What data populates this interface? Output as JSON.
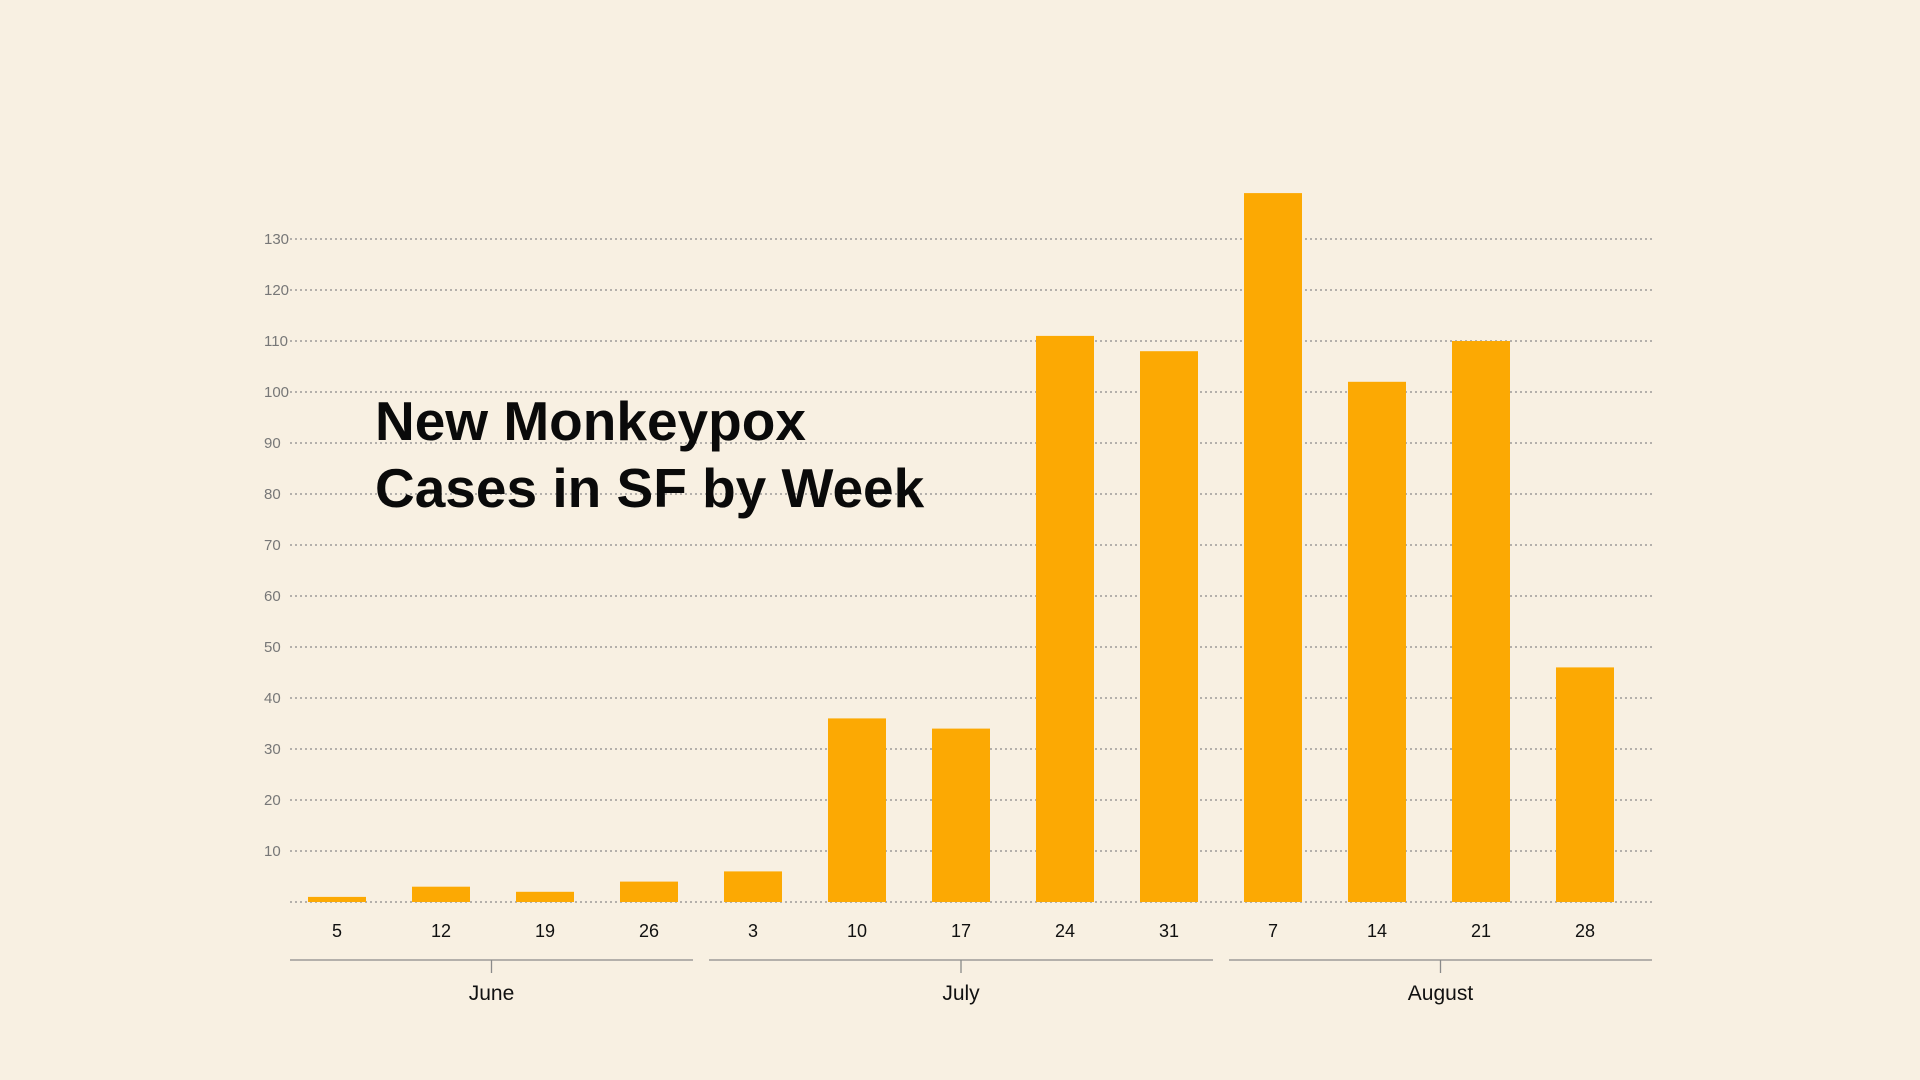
{
  "chart_data": {
    "type": "bar",
    "title_lines": [
      "New Monkeypox",
      "Cases in SF by Week"
    ],
    "categories": [
      "5",
      "12",
      "19",
      "26",
      "3",
      "10",
      "17",
      "24",
      "31",
      "7",
      "14",
      "21",
      "28"
    ],
    "values": [
      1,
      3,
      2,
      4,
      6,
      36,
      34,
      111,
      108,
      139,
      102,
      110,
      46
    ],
    "months": [
      {
        "label": "June",
        "first": 0,
        "last": 3
      },
      {
        "label": "July",
        "first": 4,
        "last": 8
      },
      {
        "label": "August",
        "first": 9,
        "last": 12
      }
    ],
    "yticks": [
      10,
      20,
      30,
      40,
      50,
      60,
      70,
      80,
      90,
      100,
      110,
      120,
      130
    ],
    "ylim": [
      0,
      139
    ],
    "xlabel": "",
    "ylabel": "",
    "grid": true,
    "bar_color": "#fca903",
    "background_color": "#f8f0e2"
  }
}
